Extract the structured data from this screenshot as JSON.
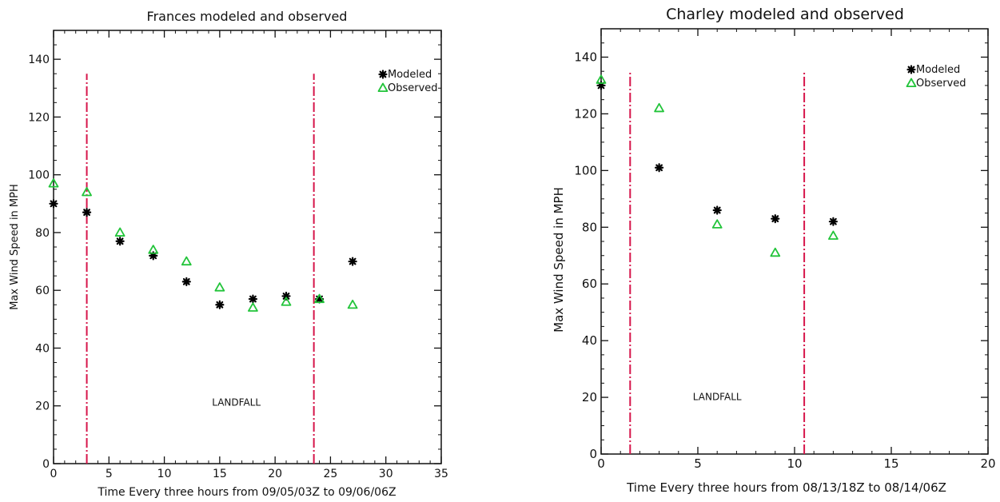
{
  "chart_data": [
    {
      "type": "scatter",
      "title": "Frances modeled and observed",
      "xlabel": "Time Every three hours from 09/05/03Z to 09/06/06Z",
      "ylabel": "Max Wind Speed in MPH",
      "xlim": [
        0,
        35
      ],
      "ylim": [
        0,
        150
      ],
      "xticks": [
        "0",
        "5",
        "10",
        "15",
        "20",
        "25",
        "30",
        "35"
      ],
      "yticks": [
        "0",
        "20",
        "40",
        "60",
        "80",
        "100",
        "120",
        "140"
      ],
      "grid": false,
      "legend_position": "top-right",
      "series": [
        {
          "name": "Modeled",
          "marker": "asterisk",
          "color": "#000000",
          "points": [
            {
              "x": 0,
              "y": 90
            },
            {
              "x": 3,
              "y": 87
            },
            {
              "x": 6,
              "y": 77
            },
            {
              "x": 9,
              "y": 72
            },
            {
              "x": 12,
              "y": 63
            },
            {
              "x": 15,
              "y": 55
            },
            {
              "x": 18,
              "y": 57
            },
            {
              "x": 21,
              "y": 58
            },
            {
              "x": 24,
              "y": 57
            },
            {
              "x": 27,
              "y": 70
            }
          ]
        },
        {
          "name": "Observed",
          "marker": "triangle",
          "color": "#22c43a",
          "points": [
            {
              "x": 0,
              "y": 97
            },
            {
              "x": 3,
              "y": 94
            },
            {
              "x": 6,
              "y": 80
            },
            {
              "x": 9,
              "y": 74
            },
            {
              "x": 12,
              "y": 70
            },
            {
              "x": 15,
              "y": 61
            },
            {
              "x": 18,
              "y": 54
            },
            {
              "x": 21,
              "y": 56
            },
            {
              "x": 24,
              "y": 57
            },
            {
              "x": 27,
              "y": 55
            }
          ]
        }
      ],
      "vlines": [
        {
          "x": 3,
          "color": "#d6154a"
        },
        {
          "x": 23.5,
          "color": "#d6154a"
        }
      ],
      "vline_range": [
        0,
        135
      ],
      "annotation": {
        "text": "LANDFALL",
        "x": 16.5,
        "y": 20
      }
    },
    {
      "type": "scatter",
      "title": "Charley modeled and observed",
      "xlabel": "Time Every three hours from 08/13/18Z to 08/14/06Z",
      "ylabel": "Max Wind Speed in MPH",
      "xlim": [
        0,
        20
      ],
      "ylim": [
        0,
        150
      ],
      "xticks": [
        "0",
        "5",
        "10",
        "15",
        "20"
      ],
      "yticks": [
        "0",
        "20",
        "40",
        "60",
        "80",
        "100",
        "120",
        "140"
      ],
      "grid": false,
      "legend_position": "top-right",
      "series": [
        {
          "name": "Modeled",
          "marker": "asterisk",
          "color": "#000000",
          "points": [
            {
              "x": 0,
              "y": 130
            },
            {
              "x": 3,
              "y": 101
            },
            {
              "x": 6,
              "y": 86
            },
            {
              "x": 9,
              "y": 83
            },
            {
              "x": 12,
              "y": 82
            }
          ]
        },
        {
          "name": "Observed",
          "marker": "triangle",
          "color": "#22c43a",
          "points": [
            {
              "x": 0,
              "y": 132
            },
            {
              "x": 3,
              "y": 122
            },
            {
              "x": 6,
              "y": 81
            },
            {
              "x": 9,
              "y": 71
            },
            {
              "x": 12,
              "y": 77
            }
          ]
        }
      ],
      "vlines": [
        {
          "x": 1.5,
          "color": "#d6154a"
        },
        {
          "x": 10.5,
          "color": "#d6154a"
        }
      ],
      "vline_range": [
        0,
        135
      ],
      "annotation": {
        "text": "LANDFALL",
        "x": 6,
        "y": 19
      }
    }
  ]
}
